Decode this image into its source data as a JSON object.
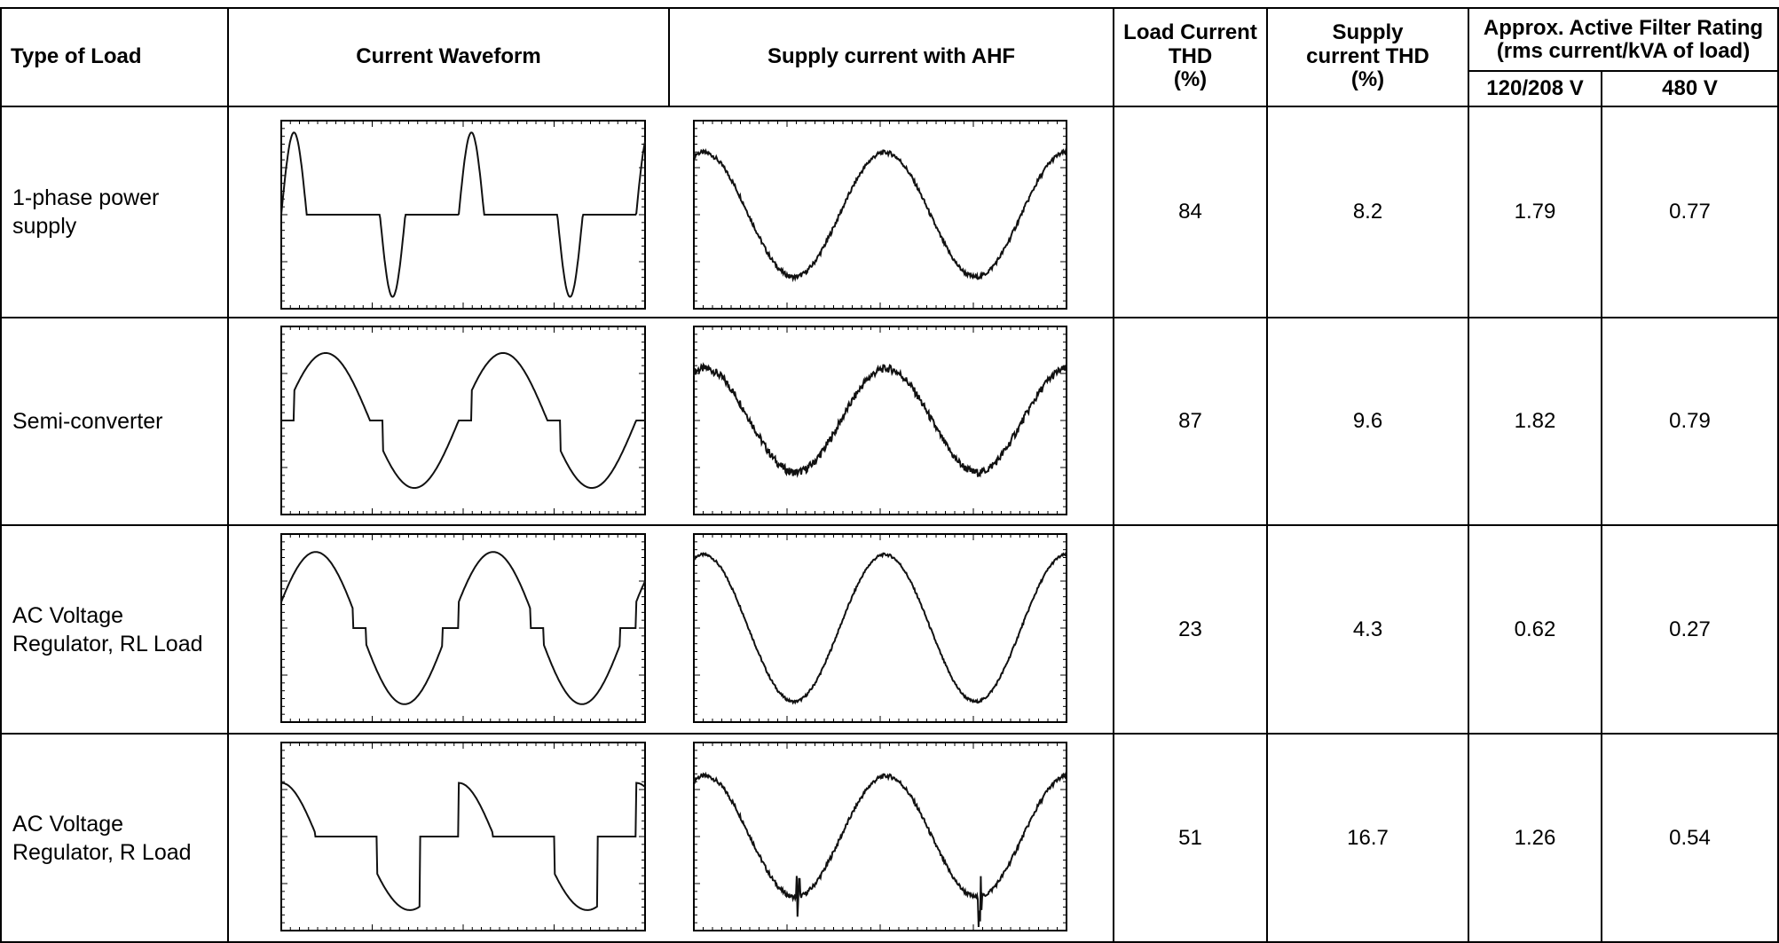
{
  "headers": {
    "type_of_load": "Type of Load",
    "current_waveform": "Current Waveform",
    "supply_with_ahf": "Supply current with AHF",
    "load_thd_line1": "Load Current",
    "load_thd_line2": "THD",
    "load_thd_line3": "(%)",
    "supply_thd_line1": "Supply",
    "supply_thd_line2": "current THD",
    "supply_thd_line3": "(%)",
    "filter_rating_line1": "Approx. Active Filter Rating",
    "filter_rating_line2": "(rms current/kVA of load)",
    "v120": "120/208 V",
    "v480": "480 V"
  },
  "rows": [
    {
      "load_line1": "1-phase power",
      "load_line2": "supply",
      "load_thd": "84",
      "supply_thd": "8.2",
      "rating_120": "1.79",
      "rating_480": "0.77",
      "waveform": "pulse",
      "ahf": "ripple"
    },
    {
      "load_line1": "Semi-converter",
      "load_line2": "",
      "load_thd": "87",
      "supply_thd": "9.6",
      "rating_120": "1.82",
      "rating_480": "0.79",
      "waveform": "semiconv",
      "ahf": "noisy"
    },
    {
      "load_line1": "AC Voltage",
      "load_line2": "Regulator, RL Load",
      "load_thd": "23",
      "supply_thd": "4.3",
      "rating_120": "0.62",
      "rating_480": "0.27",
      "waveform": "acrl",
      "ahf": "clean"
    },
    {
      "load_line1": "AC Voltage",
      "load_line2": "Regulator, R Load",
      "load_thd": "51",
      "supply_thd": "16.7",
      "rating_120": "1.26",
      "rating_480": "0.54",
      "waveform": "acr",
      "ahf": "spiky"
    }
  ]
}
